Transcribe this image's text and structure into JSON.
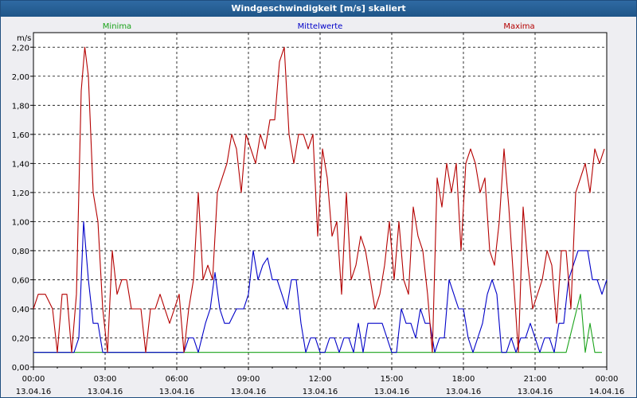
{
  "window": {
    "title": "Windgeschwindigkeit [m/s] skaliert"
  },
  "chart_data": {
    "type": "line",
    "ylabel": "m/s",
    "ylim": [
      0,
      2.3
    ],
    "y_ticks": [
      "0,00",
      "0,20",
      "0,40",
      "0,60",
      "0,80",
      "1,00",
      "1,20",
      "1,40",
      "1,60",
      "1,80",
      "2,00",
      "2,20"
    ],
    "x_hours": [
      0,
      24
    ],
    "x_ticks": [
      {
        "time": "00:00",
        "date": "13.04.16"
      },
      {
        "time": "03:00",
        "date": "13.04.16"
      },
      {
        "time": "06:00",
        "date": "13.04.16"
      },
      {
        "time": "09:00",
        "date": "13.04.16"
      },
      {
        "time": "12:00",
        "date": "13.04.16"
      },
      {
        "time": "15:00",
        "date": "13.04.16"
      },
      {
        "time": "18:00",
        "date": "13.04.16"
      },
      {
        "time": "21:00",
        "date": "13.04.16"
      },
      {
        "time": "00:00",
        "date": "14.04.16"
      }
    ],
    "grid": true,
    "legend": "top",
    "series": [
      {
        "name": "Minima",
        "color": "#1aa31a",
        "points": [
          [
            0,
            0.1
          ],
          [
            22.3,
            0.1
          ],
          [
            22.6,
            0.3
          ],
          [
            22.9,
            0.5
          ],
          [
            23.1,
            0.1
          ],
          [
            23.3,
            0.3
          ],
          [
            23.5,
            0.1
          ],
          [
            23.8,
            0.1
          ]
        ]
      },
      {
        "name": "Mittelwerte",
        "color": "#0000c8",
        "points": [
          [
            0,
            0.1
          ],
          [
            1.7,
            0.1
          ],
          [
            1.9,
            0.2
          ],
          [
            2.1,
            1.0
          ],
          [
            2.3,
            0.6
          ],
          [
            2.5,
            0.3
          ],
          [
            2.7,
            0.3
          ],
          [
            2.9,
            0.1
          ],
          [
            6.0,
            0.1
          ],
          [
            6.3,
            0.1
          ],
          [
            6.5,
            0.2
          ],
          [
            6.7,
            0.2
          ],
          [
            6.9,
            0.1
          ],
          [
            7.2,
            0.3
          ],
          [
            7.4,
            0.4
          ],
          [
            7.6,
            0.65
          ],
          [
            7.8,
            0.4
          ],
          [
            8.0,
            0.3
          ],
          [
            8.2,
            0.3
          ],
          [
            8.5,
            0.4
          ],
          [
            8.8,
            0.4
          ],
          [
            9.0,
            0.5
          ],
          [
            9.2,
            0.8
          ],
          [
            9.4,
            0.6
          ],
          [
            9.6,
            0.7
          ],
          [
            9.8,
            0.75
          ],
          [
            10.0,
            0.6
          ],
          [
            10.2,
            0.6
          ],
          [
            10.4,
            0.5
          ],
          [
            10.6,
            0.4
          ],
          [
            10.8,
            0.6
          ],
          [
            11.0,
            0.6
          ],
          [
            11.2,
            0.3
          ],
          [
            11.4,
            0.1
          ],
          [
            11.6,
            0.2
          ],
          [
            11.8,
            0.2
          ],
          [
            12.0,
            0.1
          ],
          [
            12.2,
            0.1
          ],
          [
            12.4,
            0.2
          ],
          [
            12.6,
            0.2
          ],
          [
            12.8,
            0.1
          ],
          [
            13.0,
            0.2
          ],
          [
            13.2,
            0.2
          ],
          [
            13.4,
            0.1
          ],
          [
            13.6,
            0.3
          ],
          [
            13.8,
            0.1
          ],
          [
            14.0,
            0.3
          ],
          [
            14.2,
            0.3
          ],
          [
            14.4,
            0.3
          ],
          [
            14.6,
            0.3
          ],
          [
            14.8,
            0.2
          ],
          [
            15.0,
            0.1
          ],
          [
            15.2,
            0.1
          ],
          [
            15.4,
            0.4
          ],
          [
            15.6,
            0.3
          ],
          [
            15.8,
            0.3
          ],
          [
            16.0,
            0.2
          ],
          [
            16.2,
            0.4
          ],
          [
            16.4,
            0.3
          ],
          [
            16.6,
            0.3
          ],
          [
            16.8,
            0.1
          ],
          [
            17.0,
            0.2
          ],
          [
            17.2,
            0.2
          ],
          [
            17.4,
            0.6
          ],
          [
            17.6,
            0.5
          ],
          [
            17.8,
            0.4
          ],
          [
            18.0,
            0.4
          ],
          [
            18.2,
            0.2
          ],
          [
            18.4,
            0.1
          ],
          [
            18.6,
            0.2
          ],
          [
            18.8,
            0.3
          ],
          [
            19.0,
            0.5
          ],
          [
            19.2,
            0.6
          ],
          [
            19.4,
            0.5
          ],
          [
            19.6,
            0.1
          ],
          [
            19.8,
            0.1
          ],
          [
            20.0,
            0.2
          ],
          [
            20.2,
            0.1
          ],
          [
            20.4,
            0.2
          ],
          [
            20.6,
            0.2
          ],
          [
            20.8,
            0.3
          ],
          [
            21.0,
            0.2
          ],
          [
            21.2,
            0.1
          ],
          [
            21.4,
            0.2
          ],
          [
            21.6,
            0.2
          ],
          [
            21.8,
            0.1
          ],
          [
            22.0,
            0.3
          ],
          [
            22.2,
            0.3
          ],
          [
            22.4,
            0.6
          ],
          [
            22.6,
            0.7
          ],
          [
            22.8,
            0.8
          ],
          [
            23.2,
            0.8
          ],
          [
            23.4,
            0.6
          ],
          [
            23.6,
            0.6
          ],
          [
            23.8,
            0.5
          ],
          [
            24.0,
            0.6
          ],
          [
            24.2,
            0.6
          ],
          [
            24.4,
            0.5
          ]
        ]
      },
      {
        "name": "Maxima",
        "color": "#b40000",
        "points": [
          [
            0,
            0.4
          ],
          [
            0.2,
            0.5
          ],
          [
            0.5,
            0.5
          ],
          [
            0.8,
            0.4
          ],
          [
            1.0,
            0.1
          ],
          [
            1.2,
            0.5
          ],
          [
            1.4,
            0.5
          ],
          [
            1.6,
            0.1
          ],
          [
            1.8,
            0.5
          ],
          [
            2.0,
            1.9
          ],
          [
            2.15,
            2.2
          ],
          [
            2.3,
            2.0
          ],
          [
            2.5,
            1.2
          ],
          [
            2.7,
            1.0
          ],
          [
            2.9,
            0.4
          ],
          [
            3.1,
            0.1
          ],
          [
            3.3,
            0.8
          ],
          [
            3.5,
            0.5
          ],
          [
            3.7,
            0.6
          ],
          [
            3.9,
            0.6
          ],
          [
            4.1,
            0.4
          ],
          [
            4.3,
            0.4
          ],
          [
            4.5,
            0.4
          ],
          [
            4.7,
            0.1
          ],
          [
            4.9,
            0.4
          ],
          [
            5.1,
            0.4
          ],
          [
            5.3,
            0.5
          ],
          [
            5.5,
            0.4
          ],
          [
            5.7,
            0.3
          ],
          [
            5.9,
            0.4
          ],
          [
            6.1,
            0.5
          ],
          [
            6.3,
            0.1
          ],
          [
            6.5,
            0.4
          ],
          [
            6.7,
            0.6
          ],
          [
            6.9,
            1.2
          ],
          [
            7.1,
            0.6
          ],
          [
            7.3,
            0.7
          ],
          [
            7.5,
            0.6
          ],
          [
            7.7,
            1.2
          ],
          [
            7.9,
            1.3
          ],
          [
            8.1,
            1.4
          ],
          [
            8.3,
            1.6
          ],
          [
            8.5,
            1.5
          ],
          [
            8.7,
            1.2
          ],
          [
            8.9,
            1.6
          ],
          [
            9.1,
            1.5
          ],
          [
            9.3,
            1.4
          ],
          [
            9.5,
            1.6
          ],
          [
            9.7,
            1.5
          ],
          [
            9.9,
            1.7
          ],
          [
            10.1,
            1.7
          ],
          [
            10.3,
            2.1
          ],
          [
            10.5,
            2.2
          ],
          [
            10.7,
            1.6
          ],
          [
            10.9,
            1.4
          ],
          [
            11.1,
            1.6
          ],
          [
            11.3,
            1.6
          ],
          [
            11.5,
            1.5
          ],
          [
            11.7,
            1.6
          ],
          [
            11.9,
            0.9
          ],
          [
            12.1,
            1.5
          ],
          [
            12.3,
            1.3
          ],
          [
            12.5,
            0.9
          ],
          [
            12.7,
            1.0
          ],
          [
            12.9,
            0.5
          ],
          [
            13.1,
            1.2
          ],
          [
            13.3,
            0.6
          ],
          [
            13.5,
            0.7
          ],
          [
            13.7,
            0.9
          ],
          [
            13.9,
            0.8
          ],
          [
            14.1,
            0.6
          ],
          [
            14.3,
            0.4
          ],
          [
            14.5,
            0.5
          ],
          [
            14.7,
            0.7
          ],
          [
            14.9,
            1.0
          ],
          [
            15.1,
            0.6
          ],
          [
            15.3,
            1.0
          ],
          [
            15.5,
            0.6
          ],
          [
            15.7,
            0.5
          ],
          [
            15.9,
            1.1
          ],
          [
            16.1,
            0.9
          ],
          [
            16.3,
            0.8
          ],
          [
            16.5,
            0.5
          ],
          [
            16.7,
            0.1
          ],
          [
            16.9,
            1.3
          ],
          [
            17.1,
            1.1
          ],
          [
            17.3,
            1.4
          ],
          [
            17.5,
            1.2
          ],
          [
            17.7,
            1.4
          ],
          [
            17.9,
            0.8
          ],
          [
            18.1,
            1.4
          ],
          [
            18.3,
            1.5
          ],
          [
            18.5,
            1.4
          ],
          [
            18.7,
            1.2
          ],
          [
            18.9,
            1.3
          ],
          [
            19.1,
            0.8
          ],
          [
            19.3,
            0.7
          ],
          [
            19.5,
            1.0
          ],
          [
            19.7,
            1.5
          ],
          [
            19.9,
            1.1
          ],
          [
            20.1,
            0.6
          ],
          [
            20.3,
            0.1
          ],
          [
            20.5,
            1.1
          ],
          [
            20.7,
            0.7
          ],
          [
            20.9,
            0.4
          ],
          [
            21.1,
            0.5
          ],
          [
            21.3,
            0.6
          ],
          [
            21.5,
            0.8
          ],
          [
            21.7,
            0.7
          ],
          [
            21.9,
            0.3
          ],
          [
            22.1,
            0.8
          ],
          [
            22.3,
            0.8
          ],
          [
            22.5,
            0.4
          ],
          [
            22.7,
            1.2
          ],
          [
            22.9,
            1.3
          ],
          [
            23.1,
            1.4
          ],
          [
            23.3,
            1.2
          ],
          [
            23.5,
            1.5
          ],
          [
            23.7,
            1.4
          ],
          [
            23.9,
            1.5
          ],
          [
            24.1,
            1.3
          ],
          [
            24.3,
            1.5
          ],
          [
            24.5,
            1.2
          ],
          [
            24.7,
            1.1
          ]
        ]
      }
    ]
  }
}
